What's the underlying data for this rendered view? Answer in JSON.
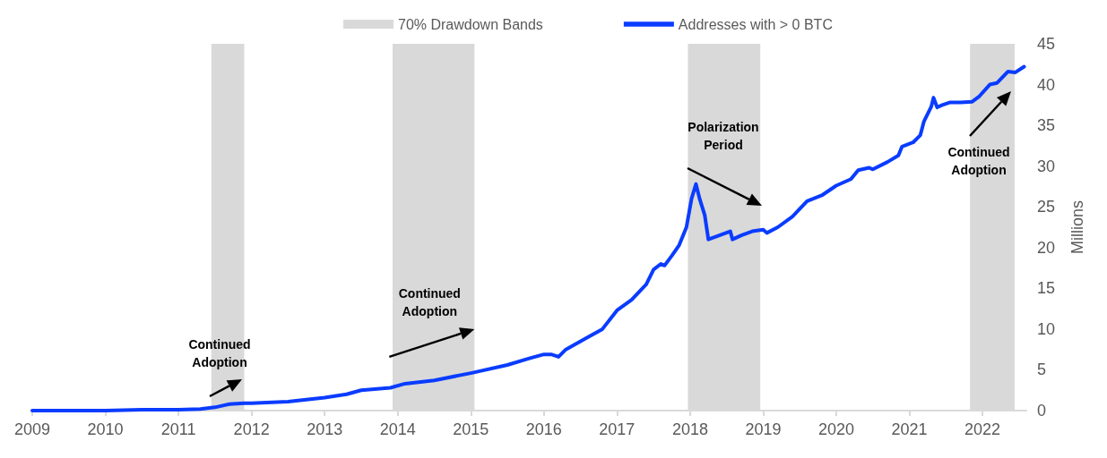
{
  "chart_data": {
    "type": "line",
    "ylabel": "Millions",
    "x": [
      2009.0,
      2009.5,
      2010.0,
      2010.5,
      2011.0,
      2011.3,
      2011.5,
      2011.7,
      2011.9,
      2012.0,
      2012.5,
      2013.0,
      2013.3,
      2013.5,
      2013.9,
      2014.1,
      2014.5,
      2015.0,
      2015.5,
      2015.8,
      2016.0,
      2016.1,
      2016.2,
      2016.3,
      2016.6,
      2016.8,
      2017.0,
      2017.2,
      2017.4,
      2017.5,
      2017.6,
      2017.65,
      2017.75,
      2017.85,
      2017.95,
      2018.02,
      2018.08,
      2018.13,
      2018.2,
      2018.25,
      2018.4,
      2018.55,
      2018.58,
      2018.7,
      2018.85,
      2019.0,
      2019.05,
      2019.2,
      2019.4,
      2019.6,
      2019.8,
      2020.0,
      2020.2,
      2020.3,
      2020.45,
      2020.5,
      2020.7,
      2020.85,
      2020.9,
      2021.05,
      2021.15,
      2021.2,
      2021.3,
      2021.33,
      2021.38,
      2021.45,
      2021.55,
      2021.7,
      2021.86,
      2021.95,
      2022.1,
      2022.2,
      2022.35,
      2022.45,
      2022.57
    ],
    "series": [
      {
        "name": "Addresses with > 0 BTC",
        "color": "#0a3cff",
        "values": [
          0,
          0,
          0,
          0.1,
          0.1,
          0.2,
          0.4,
          0.8,
          0.9,
          0.9,
          1.1,
          1.6,
          2.0,
          2.5,
          2.8,
          3.3,
          3.7,
          4.6,
          5.6,
          6.4,
          6.9,
          6.9,
          6.6,
          7.5,
          9.0,
          10.0,
          12.3,
          13.6,
          15.5,
          17.3,
          18.0,
          17.8,
          19.0,
          20.3,
          22.5,
          26.0,
          27.8,
          26.0,
          24.0,
          21.0,
          21.5,
          22.0,
          21.0,
          21.5,
          22.0,
          22.2,
          21.8,
          22.5,
          23.8,
          25.7,
          26.4,
          27.6,
          28.4,
          29.5,
          29.8,
          29.6,
          30.5,
          31.3,
          32.4,
          32.9,
          33.8,
          35.5,
          37.3,
          38.4,
          37.2,
          37.5,
          37.8,
          37.8,
          37.9,
          38.5,
          40.0,
          40.2,
          41.6,
          41.5,
          42.2
        ]
      }
    ],
    "xlim": [
      2009,
      2022.6
    ],
    "xticks": [
      2009,
      2010,
      2011,
      2012,
      2013,
      2014,
      2015,
      2016,
      2017,
      2018,
      2019,
      2020,
      2021,
      2022
    ],
    "ylim": [
      0,
      45
    ],
    "yticks": [
      0,
      5,
      10,
      15,
      20,
      25,
      30,
      35,
      40,
      45
    ],
    "bands": [
      {
        "axis": "x",
        "from": 2011.45,
        "to": 2011.9,
        "label": "70% Drawdown Bands",
        "color": "#d9d9d9"
      },
      {
        "axis": "x",
        "from": 2013.93,
        "to": 2015.05,
        "color": "#d9d9d9"
      },
      {
        "axis": "x",
        "from": 2017.97,
        "to": 2018.96,
        "color": "#d9d9d9"
      },
      {
        "axis": "x",
        "from": 2021.83,
        "to": 2022.44,
        "color": "#d9d9d9"
      }
    ],
    "annotations": [
      "Continued\nAdoption",
      {
        "text": "Continued\nAdoption",
        "x": 2015.05,
        "y": 10
      },
      "Polarization\nPeriod",
      "Continued\nAdoption"
    ],
    "legend": "top",
    "grid": false,
    "marker": "none",
    "line_style": "solid"
  }
}
